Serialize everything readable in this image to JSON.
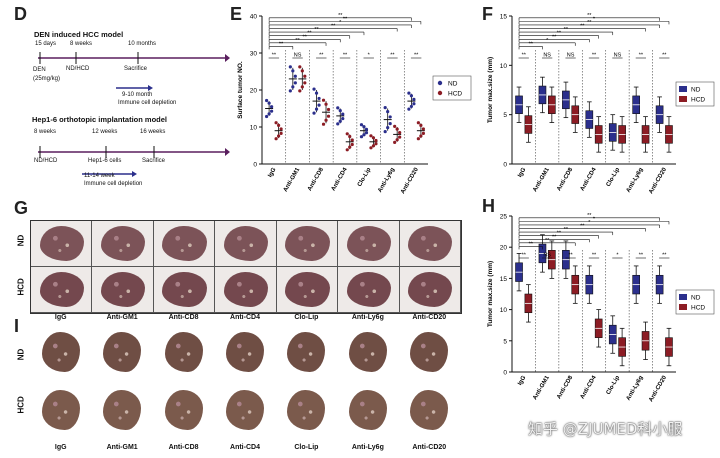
{
  "panel_d": {
    "letter": "D",
    "model1_title": "DEN induced HCC model",
    "model1_times": [
      "15 days",
      "8 weeks",
      "10 months"
    ],
    "model1_events": [
      "DEN\n(25mg/kg)",
      "ND/HCD",
      "Sacrifice"
    ],
    "model1_depletion_time": "9-10 month",
    "model1_depletion": "Immune cell depletion",
    "model2_title": "Hep1-6 orthotopic implantation model",
    "model2_times": [
      "8 weeks",
      "12 weeks",
      "16 weeks"
    ],
    "model2_events": [
      "ND/HCD",
      "Hep1-6 cells",
      "Sacrifice"
    ],
    "model2_depletion_time": "11-14 week",
    "model2_depletion": "Immune cell depletion"
  },
  "groups": [
    "IgG",
    "Anti-GM1",
    "Anti-CD8",
    "Anti-CD4",
    "Clo-Lip",
    "Anti-Ly6g",
    "Anti-CD20"
  ],
  "legend": {
    "nd": "ND",
    "hcd": "HCD"
  },
  "colors": {
    "nd": "#2b2f8c",
    "hcd": "#8c1c24",
    "liver": "#7a4a4e",
    "timeline": "#5a1e5e"
  },
  "photo_row_labels": {
    "nd": "ND",
    "hcd": "HCD"
  },
  "panel_g": {
    "letter": "G"
  },
  "panel_i": {
    "letter": "I"
  },
  "watermark": "知乎 @ZJUMED科小服",
  "chart_data": [
    {
      "panel": "E",
      "type": "scatter",
      "ylabel": "Surface tumor NO.",
      "ylim": [
        0,
        40
      ],
      "yticks": [
        0,
        10,
        20,
        30,
        40
      ],
      "categories": [
        "IgG",
        "Anti-GM1",
        "Anti-CD8",
        "Anti-CD4",
        "Clo-Lip",
        "Anti-Ly6g",
        "Anti-CD20"
      ],
      "series": [
        {
          "name": "ND",
          "means": [
            15,
            23,
            17,
            13,
            9,
            12,
            17
          ],
          "errors": [
            2,
            3,
            3,
            2,
            1.5,
            3,
            2
          ]
        },
        {
          "name": "HCD",
          "means": [
            9,
            23,
            14,
            6,
            6,
            8,
            9
          ],
          "errors": [
            2,
            3,
            3,
            2,
            1.5,
            2,
            2
          ]
        }
      ],
      "significance_top": [
        "**",
        "**",
        "**",
        "**",
        "**",
        "**",
        "*",
        "**",
        "**"
      ],
      "significance_pairs": [
        "**",
        "NS",
        "**",
        "**",
        "*",
        "**",
        "**"
      ]
    },
    {
      "panel": "F",
      "type": "box",
      "ylabel": "Tumor max.size (mm)",
      "ylim": [
        0,
        15
      ],
      "yticks": [
        0,
        5,
        10,
        15
      ],
      "categories": [
        "IgG",
        "Anti-GM1",
        "Anti-CD8",
        "Anti-CD4",
        "Clo-Lip",
        "Anti-Ly6g",
        "Anti-CD20"
      ],
      "series": [
        {
          "name": "ND",
          "medians": [
            6,
            7,
            6.5,
            4.5,
            3.2,
            6,
            5
          ]
        },
        {
          "name": "HCD",
          "medians": [
            4,
            6,
            5,
            3,
            3,
            3,
            3
          ]
        }
      ],
      "significance_top": [
        "**",
        "*",
        "**",
        "**",
        "**",
        "**",
        "**",
        "*",
        "**"
      ],
      "significance_pairs": [
        "**",
        "NS",
        "NS",
        "**",
        "NS",
        "**",
        "**"
      ]
    },
    {
      "panel": "H",
      "type": "box",
      "ylabel": "Tumor max.size (mm)",
      "ylim": [
        0,
        25
      ],
      "yticks": [
        0,
        5,
        10,
        15,
        20,
        25
      ],
      "categories": [
        "IgG",
        "Anti-GM1",
        "Anti-CD8",
        "Anti-CD4",
        "Clo-Lip",
        "Anti-Ly6g",
        "Anti-CD20"
      ],
      "series": [
        {
          "name": "ND",
          "medians": [
            16,
            19,
            18,
            14,
            6,
            14,
            14
          ]
        },
        {
          "name": "HCD",
          "medians": [
            11,
            18,
            14,
            7,
            4,
            5,
            4
          ]
        }
      ],
      "significance_top": [
        "**",
        "**",
        "**",
        "**",
        "**",
        "**",
        "*",
        "*",
        "**"
      ],
      "significance_pairs": [
        "**",
        "NS",
        "**",
        "**",
        "*",
        "**",
        "**"
      ]
    }
  ]
}
